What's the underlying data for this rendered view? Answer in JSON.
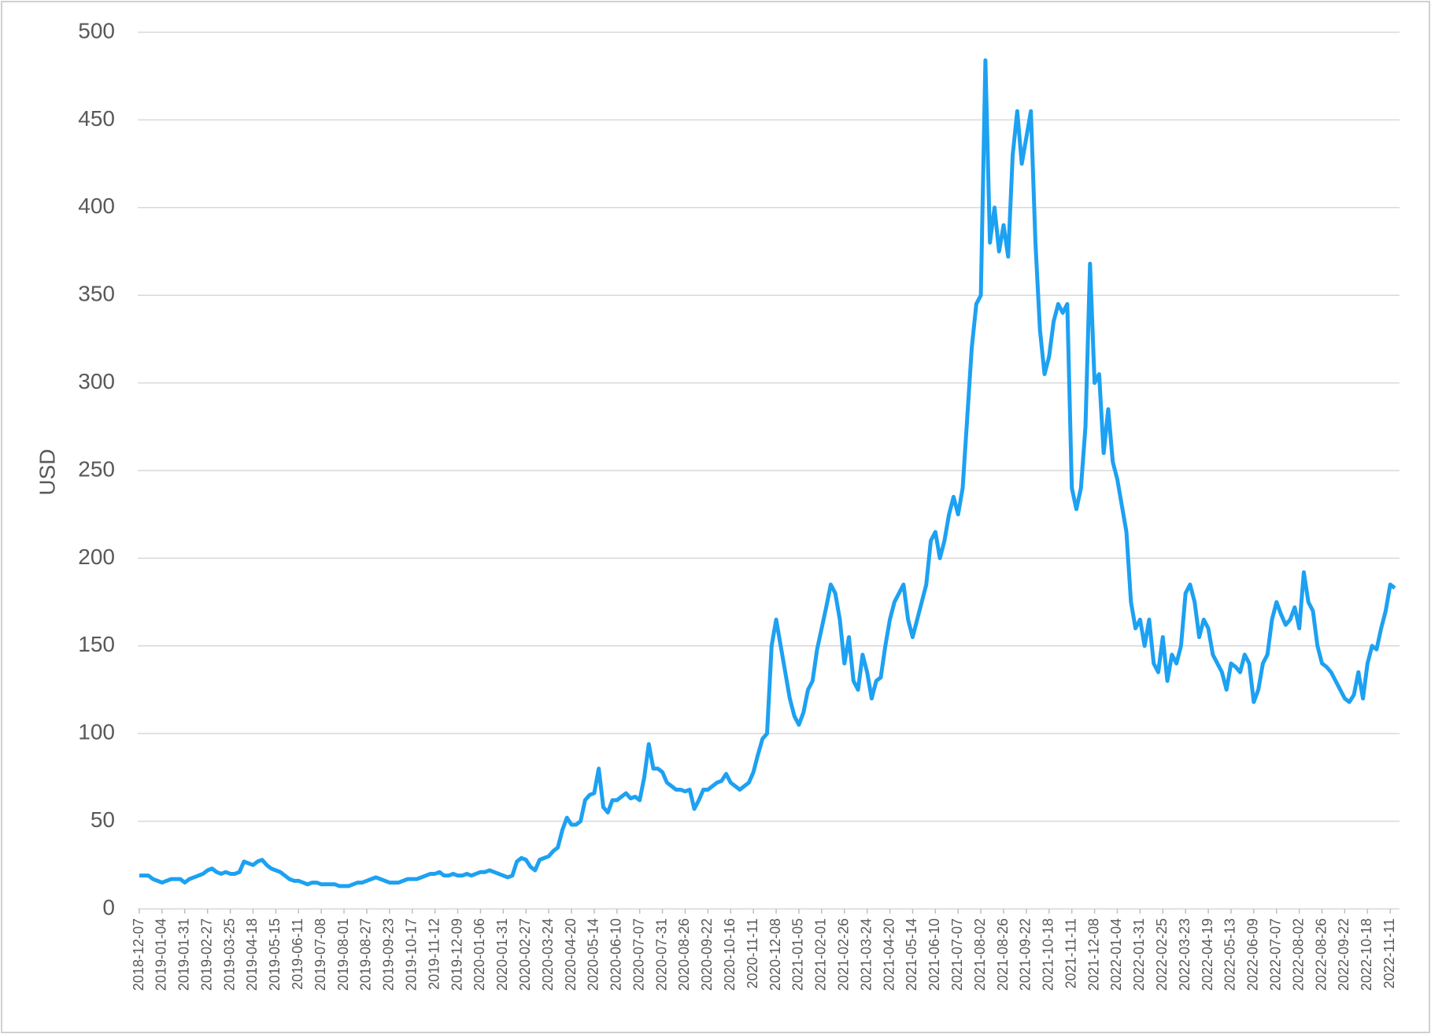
{
  "chart_data": {
    "type": "line",
    "y_label": "USD",
    "categories": [
      "2018-12-07",
      null,
      null,
      null,
      null,
      "2019-01-04",
      null,
      null,
      null,
      null,
      "2019-01-31",
      null,
      null,
      null,
      null,
      "2019-02-27",
      null,
      null,
      null,
      null,
      "2019-03-25",
      null,
      null,
      null,
      null,
      "2019-04-18",
      null,
      null,
      null,
      null,
      "2019-05-15",
      null,
      null,
      null,
      null,
      "2019-06-11",
      null,
      null,
      null,
      null,
      "2019-07-08",
      null,
      null,
      null,
      null,
      "2019-08-01",
      null,
      null,
      null,
      null,
      "2019-08-27",
      null,
      null,
      null,
      null,
      "2019-09-23",
      null,
      null,
      null,
      null,
      "2019-10-17",
      null,
      null,
      null,
      null,
      "2019-11-12",
      null,
      null,
      null,
      null,
      "2019-12-09",
      null,
      null,
      null,
      null,
      "2020-01-06",
      null,
      null,
      null,
      null,
      "2020-01-31",
      null,
      null,
      null,
      null,
      "2020-02-27",
      null,
      null,
      null,
      null,
      "2020-03-24",
      null,
      null,
      null,
      null,
      "2020-04-20",
      null,
      null,
      null,
      null,
      "2020-05-14",
      null,
      null,
      null,
      null,
      "2020-06-10",
      null,
      null,
      null,
      null,
      "2020-07-07",
      null,
      null,
      null,
      null,
      "2020-07-31",
      null,
      null,
      null,
      null,
      "2020-08-26",
      null,
      null,
      null,
      null,
      "2020-09-22",
      null,
      null,
      null,
      null,
      "2020-10-16",
      null,
      null,
      null,
      null,
      "2020-11-11",
      null,
      null,
      null,
      null,
      "2020-12-08",
      null,
      null,
      null,
      null,
      "2021-01-05",
      null,
      null,
      null,
      null,
      "2021-02-01",
      null,
      null,
      null,
      null,
      "2021-02-26",
      null,
      null,
      null,
      null,
      "2021-03-24",
      null,
      null,
      null,
      null,
      "2021-04-20",
      null,
      null,
      null,
      null,
      "2021-05-14",
      null,
      null,
      null,
      null,
      "2021-06-10",
      null,
      null,
      null,
      null,
      "2021-07-07",
      null,
      null,
      null,
      null,
      "2021-08-02",
      null,
      null,
      null,
      null,
      "2021-08-26",
      null,
      null,
      null,
      null,
      "2021-09-22",
      null,
      null,
      null,
      null,
      "2021-10-18",
      null,
      null,
      null,
      null,
      "2021-11-11",
      null,
      null,
      null,
      null,
      "2021-12-08",
      null,
      null,
      null,
      null,
      "2022-01-04",
      null,
      null,
      null,
      null,
      "2022-01-31",
      null,
      null,
      null,
      null,
      "2022-02-25",
      null,
      null,
      null,
      null,
      "2022-03-23",
      null,
      null,
      null,
      null,
      "2022-04-19",
      null,
      null,
      null,
      null,
      "2022-05-13",
      null,
      null,
      null,
      null,
      "2022-06-09",
      null,
      null,
      null,
      null,
      "2022-07-07",
      null,
      null,
      null,
      null,
      "2022-08-02",
      null,
      null,
      null,
      null,
      "2022-08-26",
      null,
      null,
      null,
      null,
      "2022-09-22",
      null,
      null,
      null,
      null,
      "2022-10-18",
      null,
      null,
      null,
      null,
      "2022-11-11",
      null
    ],
    "values": [
      19,
      19,
      19,
      17,
      16,
      15,
      16,
      17,
      17,
      17,
      15,
      17,
      18,
      19,
      20,
      22,
      23,
      21,
      20,
      21,
      20,
      20,
      21,
      27,
      26,
      25,
      27,
      28,
      25,
      23,
      22,
      21,
      19,
      17,
      16,
      16,
      15,
      14,
      15,
      15,
      14,
      14,
      14,
      14,
      13,
      13,
      13,
      14,
      15,
      15,
      16,
      17,
      18,
      17,
      16,
      15,
      15,
      15,
      16,
      17,
      17,
      17,
      18,
      19,
      20,
      20,
      21,
      19,
      19,
      20,
      19,
      19,
      20,
      19,
      20,
      21,
      21,
      22,
      21,
      20,
      19,
      18,
      19,
      27,
      29,
      28,
      24,
      22,
      28,
      29,
      30,
      33,
      35,
      45,
      52,
      48,
      48,
      50,
      62,
      65,
      66,
      80,
      58,
      55,
      62,
      62,
      64,
      66,
      63,
      64,
      62,
      75,
      94,
      80,
      80,
      78,
      72,
      70,
      68,
      68,
      67,
      68,
      57,
      62,
      68,
      68,
      70,
      72,
      73,
      77,
      72,
      70,
      68,
      70,
      72,
      78,
      88,
      97,
      100,
      150,
      165,
      150,
      135,
      120,
      110,
      105,
      112,
      125,
      130,
      148,
      160,
      172,
      185,
      180,
      165,
      140,
      155,
      130,
      125,
      145,
      135,
      120,
      130,
      132,
      150,
      165,
      175,
      180,
      185,
      165,
      155,
      165,
      175,
      185,
      210,
      215,
      200,
      210,
      225,
      235,
      225,
      240,
      280,
      320,
      345,
      350,
      484,
      380,
      400,
      375,
      390,
      372,
      430,
      455,
      425,
      440,
      455,
      380,
      330,
      305,
      315,
      335,
      345,
      340,
      345,
      240,
      228,
      240,
      275,
      368,
      300,
      305,
      260,
      285,
      255,
      245,
      230,
      215,
      175,
      160,
      165,
      150,
      165,
      140,
      135,
      155,
      130,
      145,
      140,
      150,
      180,
      185,
      175,
      155,
      165,
      160,
      145,
      140,
      135,
      125,
      140,
      138,
      135,
      145,
      140,
      118,
      125,
      140,
      145,
      165,
      175,
      168,
      162,
      165,
      172,
      160,
      192,
      175,
      170,
      150,
      140,
      138,
      135,
      130,
      125,
      120,
      118,
      122,
      135,
      120,
      140,
      150,
      148,
      160,
      170,
      185,
      183
    ],
    "color": "#1da1f2",
    "ylim": [
      0,
      500
    ],
    "yticks": [
      0,
      50,
      100,
      150,
      200,
      250,
      300,
      350,
      400,
      450,
      500
    ],
    "grid": true
  }
}
